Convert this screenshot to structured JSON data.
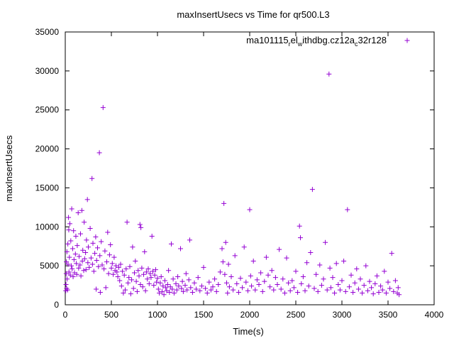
{
  "colors": {
    "series": "#9400d3",
    "axis": "#000000",
    "background": "#ffffff"
  },
  "chart_data": {
    "type": "scatter",
    "title": "maxInsertUsecs vs Time for qr500.L3",
    "xlabel": "Time(s)",
    "ylabel": "maxInsertUsecs",
    "xlim": [
      0,
      4000
    ],
    "ylim": [
      0,
      35000
    ],
    "xticks": [
      0,
      500,
      1000,
      1500,
      2000,
      2500,
      3000,
      3500,
      4000
    ],
    "yticks": [
      0,
      5000,
      10000,
      15000,
      20000,
      25000,
      30000,
      35000
    ],
    "x_tick_labels": [
      "0",
      "500",
      "1000",
      "1500",
      "2000",
      "2500",
      "3000",
      "3500",
      "4000"
    ],
    "y_tick_labels": [
      "0",
      "5000",
      "10000",
      "15000",
      "20000",
      "25000",
      "30000",
      "35000"
    ],
    "grid": false,
    "legend_position": "top-right",
    "marker": "+",
    "legend": {
      "base": "ma101115",
      "sub1": "r",
      "mid1": "el",
      "sub2": "w",
      "mid2": "ithdbg.cz12a",
      "sub3": "c",
      "tail": "32r128"
    },
    "series": [
      {
        "name": "ma101115_rel_withdbg.cz12a_c32r128",
        "points": [
          [
            5,
            1800
          ],
          [
            8,
            2600
          ],
          [
            10,
            4000
          ],
          [
            12,
            5500
          ],
          [
            15,
            2100
          ],
          [
            18,
            6800
          ],
          [
            20,
            3300
          ],
          [
            25,
            1900
          ],
          [
            28,
            7800
          ],
          [
            30,
            5200
          ],
          [
            35,
            11200
          ],
          [
            38,
            9600
          ],
          [
            40,
            4200
          ],
          [
            45,
            6100
          ],
          [
            50,
            10400
          ],
          [
            55,
            3800
          ],
          [
            60,
            8200
          ],
          [
            65,
            5000
          ],
          [
            70,
            12300
          ],
          [
            75,
            4600
          ],
          [
            80,
            7200
          ],
          [
            85,
            3600
          ],
          [
            90,
            9500
          ],
          [
            95,
            5800
          ],
          [
            100,
            4100
          ],
          [
            110,
            6500
          ],
          [
            115,
            8800
          ],
          [
            120,
            5300
          ],
          [
            125,
            3900
          ],
          [
            130,
            7600
          ],
          [
            140,
            11800
          ],
          [
            145,
            4700
          ],
          [
            150,
            6200
          ],
          [
            160,
            5100
          ],
          [
            165,
            9100
          ],
          [
            170,
            3700
          ],
          [
            180,
            12100
          ],
          [
            185,
            5600
          ],
          [
            190,
            7000
          ],
          [
            200,
            4400
          ],
          [
            205,
            10600
          ],
          [
            210,
            5900
          ],
          [
            220,
            6700
          ],
          [
            225,
            4500
          ],
          [
            230,
            8300
          ],
          [
            240,
            13500
          ],
          [
            245,
            5400
          ],
          [
            250,
            7400
          ],
          [
            260,
            4800
          ],
          [
            270,
            9800
          ],
          [
            280,
            6000
          ],
          [
            290,
            16200
          ],
          [
            295,
            5200
          ],
          [
            300,
            7900
          ],
          [
            310,
            4300
          ],
          [
            320,
            6600
          ],
          [
            330,
            8700
          ],
          [
            335,
            2000
          ],
          [
            340,
            5700
          ],
          [
            350,
            7300
          ],
          [
            360,
            4900
          ],
          [
            370,
            19500
          ],
          [
            375,
            6300
          ],
          [
            380,
            1600
          ],
          [
            390,
            8100
          ],
          [
            400,
            5100
          ],
          [
            410,
            25300
          ],
          [
            420,
            4600
          ],
          [
            430,
            6900
          ],
          [
            440,
            2200
          ],
          [
            450,
            5500
          ],
          [
            460,
            9300
          ],
          [
            470,
            4000
          ],
          [
            480,
            6400
          ],
          [
            490,
            7700
          ],
          [
            500,
            4700
          ],
          [
            510,
            5300
          ],
          [
            520,
            3900
          ],
          [
            530,
            6100
          ],
          [
            540,
            4400
          ],
          [
            550,
            5000
          ],
          [
            560,
            4200
          ],
          [
            570,
            3600
          ],
          [
            580,
            4800
          ],
          [
            590,
            3100
          ],
          [
            600,
            5200
          ],
          [
            610,
            2400
          ],
          [
            620,
            4300
          ],
          [
            630,
            1500
          ],
          [
            640,
            3800
          ],
          [
            650,
            1900
          ],
          [
            660,
            4600
          ],
          [
            670,
            10600
          ],
          [
            680,
            2800
          ],
          [
            690,
            3500
          ],
          [
            700,
            4900
          ],
          [
            710,
            1400
          ],
          [
            720,
            3200
          ],
          [
            730,
            7400
          ],
          [
            740,
            2100
          ],
          [
            750,
            4100
          ],
          [
            760,
            5600
          ],
          [
            770,
            3000
          ],
          [
            780,
            1700
          ],
          [
            790,
            4400
          ],
          [
            800,
            3700
          ],
          [
            810,
            10300
          ],
          [
            815,
            2600
          ],
          [
            820,
            9900
          ],
          [
            830,
            4700
          ],
          [
            840,
            2300
          ],
          [
            850,
            3900
          ],
          [
            860,
            6800
          ],
          [
            870,
            1800
          ],
          [
            880,
            4200
          ],
          [
            890,
            3300
          ],
          [
            900,
            4600
          ],
          [
            910,
            2700
          ],
          [
            920,
            4000
          ],
          [
            930,
            3500
          ],
          [
            940,
            8800
          ],
          [
            950,
            4300
          ],
          [
            960,
            2500
          ],
          [
            970,
            3800
          ],
          [
            980,
            4500
          ],
          [
            990,
            2900
          ],
          [
            1000,
            3400
          ],
          [
            1010,
            2000
          ],
          [
            1020,
            1500
          ],
          [
            1030,
            2800
          ],
          [
            1040,
            3600
          ],
          [
            1050,
            1700
          ],
          [
            1060,
            2400
          ],
          [
            1070,
            1300
          ],
          [
            1080,
            3100
          ],
          [
            1090,
            2200
          ],
          [
            1100,
            1800
          ],
          [
            1110,
            2600
          ],
          [
            1120,
            4400
          ],
          [
            1130,
            1600
          ],
          [
            1140,
            2300
          ],
          [
            1150,
            7800
          ],
          [
            1160,
            2000
          ],
          [
            1170,
            3300
          ],
          [
            1180,
            1500
          ],
          [
            1200,
            2700
          ],
          [
            1210,
            1900
          ],
          [
            1220,
            3600
          ],
          [
            1230,
            2400
          ],
          [
            1250,
            7200
          ],
          [
            1260,
            2100
          ],
          [
            1270,
            3000
          ],
          [
            1280,
            1700
          ],
          [
            1300,
            2500
          ],
          [
            1310,
            4000
          ],
          [
            1320,
            1900
          ],
          [
            1340,
            3200
          ],
          [
            1350,
            8300
          ],
          [
            1360,
            2200
          ],
          [
            1380,
            1600
          ],
          [
            1400,
            2800
          ],
          [
            1420,
            2000
          ],
          [
            1440,
            3500
          ],
          [
            1460,
            1800
          ],
          [
            1480,
            2400
          ],
          [
            1500,
            4800
          ],
          [
            1520,
            2100
          ],
          [
            1540,
            1500
          ],
          [
            1560,
            2900
          ],
          [
            1580,
            1900
          ],
          [
            1600,
            2300
          ],
          [
            1620,
            3300
          ],
          [
            1640,
            1700
          ],
          [
            1660,
            2600
          ],
          [
            1680,
            4200
          ],
          [
            1700,
            7200
          ],
          [
            1710,
            5500
          ],
          [
            1720,
            13000
          ],
          [
            1730,
            3900
          ],
          [
            1740,
            8000
          ],
          [
            1750,
            2800
          ],
          [
            1760,
            1500
          ],
          [
            1770,
            5200
          ],
          [
            1780,
            2300
          ],
          [
            1800,
            3600
          ],
          [
            1820,
            1900
          ],
          [
            1840,
            6300
          ],
          [
            1860,
            2700
          ],
          [
            1880,
            1600
          ],
          [
            1900,
            3400
          ],
          [
            1920,
            2200
          ],
          [
            1940,
            7400
          ],
          [
            1960,
            2900
          ],
          [
            1980,
            1800
          ],
          [
            2000,
            12200
          ],
          [
            2010,
            3700
          ],
          [
            2020,
            2400
          ],
          [
            2040,
            5600
          ],
          [
            2060,
            1900
          ],
          [
            2080,
            3200
          ],
          [
            2100,
            2600
          ],
          [
            2120,
            4100
          ],
          [
            2140,
            1700
          ],
          [
            2160,
            3000
          ],
          [
            2180,
            6100
          ],
          [
            2200,
            3800
          ],
          [
            2220,
            2300
          ],
          [
            2240,
            4400
          ],
          [
            2260,
            1900
          ],
          [
            2280,
            3500
          ],
          [
            2300,
            2600
          ],
          [
            2320,
            7100
          ],
          [
            2340,
            2000
          ],
          [
            2360,
            3300
          ],
          [
            2380,
            1500
          ],
          [
            2400,
            6000
          ],
          [
            2420,
            2800
          ],
          [
            2440,
            1800
          ],
          [
            2460,
            3100
          ],
          [
            2480,
            2200
          ],
          [
            2500,
            4300
          ],
          [
            2520,
            1600
          ],
          [
            2540,
            10100
          ],
          [
            2550,
            8600
          ],
          [
            2560,
            2700
          ],
          [
            2580,
            3600
          ],
          [
            2600,
            1800
          ],
          [
            2620,
            5400
          ],
          [
            2640,
            2400
          ],
          [
            2660,
            6700
          ],
          [
            2680,
            14800
          ],
          [
            2700,
            2100
          ],
          [
            2720,
            3900
          ],
          [
            2740,
            1700
          ],
          [
            2760,
            5100
          ],
          [
            2780,
            2500
          ],
          [
            2800,
            3300
          ],
          [
            2820,
            8000
          ],
          [
            2840,
            1900
          ],
          [
            2860,
            29600
          ],
          [
            2870,
            4700
          ],
          [
            2880,
            2200
          ],
          [
            2900,
            3500
          ],
          [
            2920,
            1500
          ],
          [
            2940,
            5300
          ],
          [
            2960,
            2600
          ],
          [
            2980,
            1900
          ],
          [
            3000,
            3100
          ],
          [
            3020,
            5600
          ],
          [
            3040,
            1700
          ],
          [
            3060,
            12200
          ],
          [
            3080,
            2300
          ],
          [
            3100,
            3800
          ],
          [
            3120,
            1600
          ],
          [
            3140,
            2800
          ],
          [
            3160,
            4600
          ],
          [
            3180,
            2000
          ],
          [
            3200,
            3300
          ],
          [
            3220,
            1500
          ],
          [
            3240,
            2500
          ],
          [
            3260,
            5000
          ],
          [
            3280,
            1800
          ],
          [
            3300,
            3000
          ],
          [
            3320,
            2200
          ],
          [
            3340,
            1400
          ],
          [
            3360,
            2700
          ],
          [
            3380,
            3700
          ],
          [
            3400,
            1600
          ],
          [
            3420,
            2400
          ],
          [
            3440,
            1900
          ],
          [
            3460,
            4300
          ],
          [
            3480,
            1500
          ],
          [
            3500,
            2900
          ],
          [
            3520,
            2100
          ],
          [
            3540,
            6600
          ],
          [
            3560,
            1700
          ],
          [
            3580,
            3100
          ],
          [
            3600,
            1500
          ],
          [
            3610,
            2200
          ],
          [
            3620,
            1300
          ]
        ]
      }
    ]
  }
}
